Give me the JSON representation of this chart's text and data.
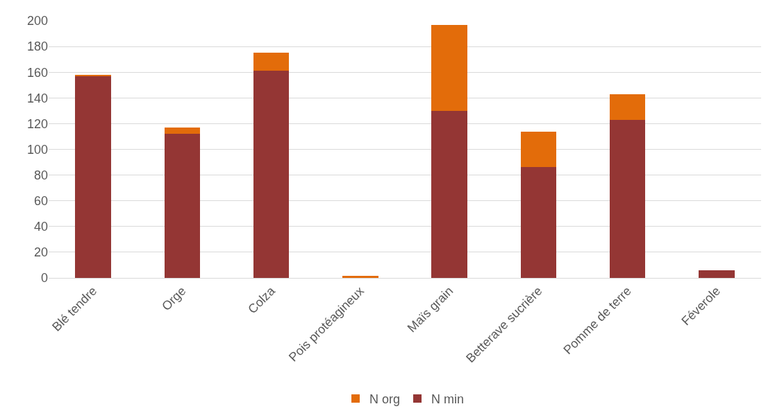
{
  "chart_data": {
    "type": "bar",
    "stacked": true,
    "categories": [
      "Blé tendre",
      "Orge",
      "Colza",
      "Pois protéagineux",
      "Maïs grain",
      "Betterave sucrière",
      "Pomme de terre",
      "Féverole"
    ],
    "series": [
      {
        "name": "N min",
        "color": "#943634",
        "values": [
          157,
          112,
          161,
          0,
          130,
          86,
          123,
          6
        ]
      },
      {
        "name": "N org",
        "color": "#e36c0a",
        "values": [
          1,
          5,
          14,
          1.5,
          67,
          28,
          20,
          0
        ]
      }
    ],
    "ylim": [
      0,
      200
    ],
    "yticks": [
      0,
      20,
      40,
      60,
      80,
      100,
      120,
      140,
      160,
      180,
      200
    ],
    "grid": "y",
    "legend": "bottom"
  }
}
